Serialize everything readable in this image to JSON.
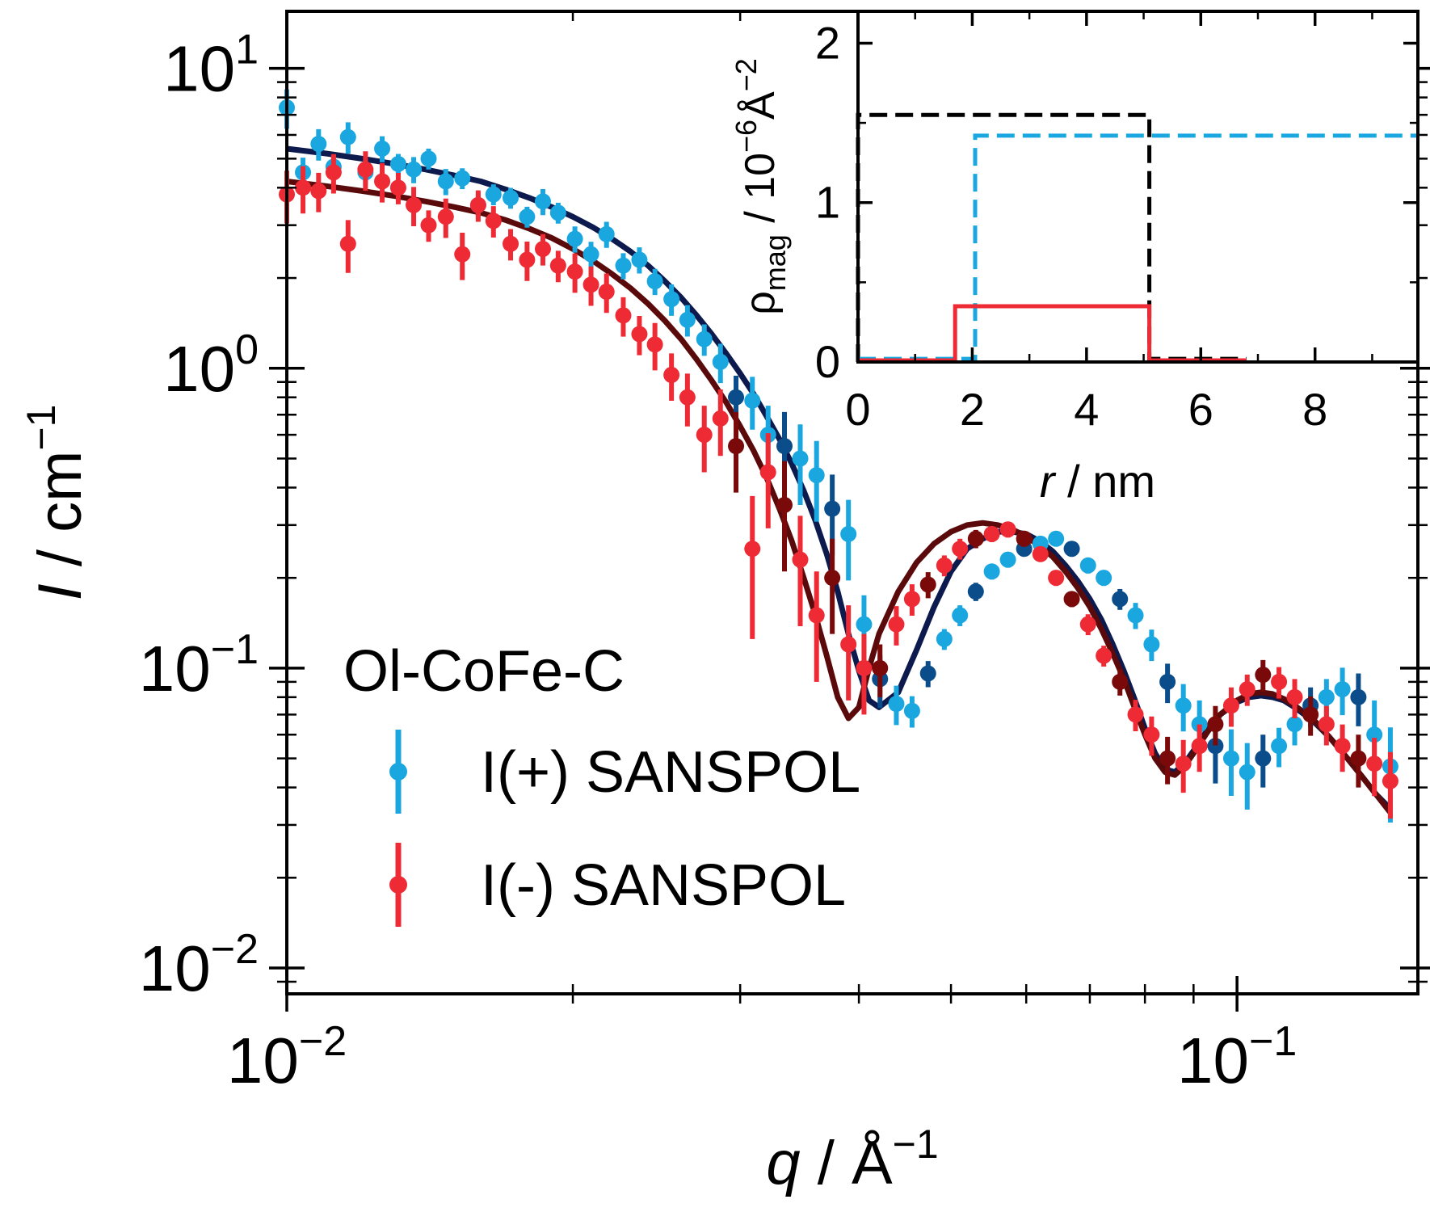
{
  "chart_data": [
    {
      "type": "scatter",
      "title": "",
      "xlabel": {
        "var": "q",
        "sep": " / ",
        "unit": "Å",
        "exp": "−1"
      },
      "ylabel": {
        "var": "I",
        "sep": " / ",
        "unit": "cm",
        "exp": "−1"
      },
      "xscale": "log",
      "yscale": "log",
      "xlim": [
        0.01,
        0.155
      ],
      "ylim": [
        0.0082,
        15.5
      ],
      "xticks": [
        {
          "value": 0.01,
          "base": "10",
          "exp": "−2"
        },
        {
          "value": 0.1,
          "base": "10",
          "exp": "−1"
        }
      ],
      "yticks": [
        {
          "value": 0.01,
          "base": "10",
          "exp": "−2"
        },
        {
          "value": 0.1,
          "base": "10",
          "exp": "−1"
        },
        {
          "value": 1,
          "base": "10",
          "exp": "0"
        },
        {
          "value": 10,
          "base": "10",
          "exp": "1"
        }
      ],
      "grid": false,
      "legend": {
        "placement": "lower-left",
        "title": "Ol-CoFe-C",
        "entries": [
          "I(+) SANSPOL",
          "I(-) SANSPOL"
        ]
      },
      "colors": {
        "plus_data": "#1aa7e0",
        "plus_data_dark": "#0b4d8a",
        "minus_data": "#ee2a35",
        "minus_data_dark": "#7a0a0a",
        "plus_fit": "#0c1a4e",
        "minus_fit": "#5a0a0a"
      },
      "series": [
        {
          "name": "I(+) SANSPOL",
          "x": [
            0.01,
            0.0104,
            0.0108,
            0.0112,
            0.0116,
            0.0121,
            0.0126,
            0.0131,
            0.0136,
            0.0141,
            0.0147,
            0.0153,
            0.0159,
            0.0165,
            0.0172,
            0.0179,
            0.0186,
            0.0193,
            0.0201,
            0.0209,
            0.0217,
            0.0226,
            0.0235,
            0.0244,
            0.0254,
            0.0264,
            0.0275,
            0.0286,
            0.0297,
            0.0309,
            0.0321,
            0.0334,
            0.0347,
            0.0361,
            0.0375,
            0.039,
            0.0405,
            0.0421,
            0.0438,
            0.0455,
            0.0473,
            0.0492,
            0.0511,
            0.0531,
            0.0552,
            0.0574,
            0.0597,
            0.0621,
            0.0645,
            0.067,
            0.0697,
            0.0724,
            0.0753,
            0.0782,
            0.0813,
            0.0845,
            0.0878,
            0.0913,
            0.0949,
            0.0986,
            0.1025,
            0.1065,
            0.1107,
            0.115,
            0.1195,
            0.1242,
            0.1291,
            0.1342,
            0.1395,
            0.145
          ],
          "y": [
            7.4,
            4.5,
            5.6,
            4.7,
            5.9,
            4.5,
            5.4,
            4.8,
            4.6,
            5.0,
            4.2,
            4.3,
            3.5,
            3.8,
            3.7,
            3.2,
            3.6,
            3.3,
            2.7,
            2.4,
            2.8,
            2.2,
            2.3,
            1.95,
            1.7,
            1.45,
            1.25,
            1.05,
            0.8,
            0.78,
            0.6,
            0.55,
            0.5,
            0.44,
            0.34,
            0.28,
            0.14,
            0.092,
            0.076,
            0.072,
            0.096,
            0.125,
            0.15,
            0.18,
            0.21,
            0.23,
            0.25,
            0.26,
            0.27,
            0.25,
            0.22,
            0.2,
            0.17,
            0.15,
            0.12,
            0.09,
            0.075,
            0.065,
            0.055,
            0.05,
            0.045,
            0.05,
            0.055,
            0.065,
            0.075,
            0.08,
            0.085,
            0.08,
            0.06,
            0.047
          ],
          "yerr_rel": [
            0.15,
            0.12,
            0.12,
            0.1,
            0.12,
            0.1,
            0.1,
            0.08,
            0.1,
            0.08,
            0.1,
            0.08,
            0.1,
            0.08,
            0.08,
            0.08,
            0.1,
            0.08,
            0.1,
            0.1,
            0.1,
            0.1,
            0.1,
            0.1,
            0.12,
            0.12,
            0.12,
            0.15,
            0.18,
            0.2,
            0.25,
            0.3,
            0.3,
            0.3,
            0.3,
            0.3,
            0.25,
            0.2,
            0.15,
            0.12,
            0.1,
            0.08,
            0.08,
            0.07,
            0.06,
            0.06,
            0.05,
            0.05,
            0.05,
            0.05,
            0.06,
            0.06,
            0.08,
            0.1,
            0.12,
            0.15,
            0.18,
            0.2,
            0.25,
            0.25,
            0.25,
            0.2,
            0.15,
            0.15,
            0.15,
            0.15,
            0.18,
            0.2,
            0.3,
            0.35
          ]
        },
        {
          "name": "I(-) SANSPOL",
          "x": [
            0.01,
            0.0104,
            0.0108,
            0.0112,
            0.0116,
            0.0121,
            0.0126,
            0.0131,
            0.0136,
            0.0141,
            0.0147,
            0.0153,
            0.0159,
            0.0165,
            0.0172,
            0.0179,
            0.0186,
            0.0193,
            0.0201,
            0.0209,
            0.0217,
            0.0226,
            0.0235,
            0.0244,
            0.0254,
            0.0264,
            0.0275,
            0.0286,
            0.0297,
            0.0309,
            0.0321,
            0.0334,
            0.0347,
            0.0361,
            0.0375,
            0.039,
            0.0405,
            0.0421,
            0.0438,
            0.0455,
            0.0473,
            0.0492,
            0.0511,
            0.0531,
            0.0552,
            0.0574,
            0.0597,
            0.0621,
            0.0645,
            0.067,
            0.0697,
            0.0724,
            0.0753,
            0.0782,
            0.0813,
            0.0845,
            0.0878,
            0.0913,
            0.0949,
            0.0986,
            0.1025,
            0.1065,
            0.1107,
            0.115,
            0.1195,
            0.1242,
            0.1291,
            0.1342,
            0.1395,
            0.145
          ],
          "y": [
            3.8,
            4.0,
            3.9,
            4.5,
            2.6,
            4.6,
            4.2,
            4.0,
            3.5,
            3.0,
            3.2,
            2.4,
            3.5,
            3.1,
            2.6,
            2.3,
            2.5,
            2.2,
            2.1,
            1.9,
            1.8,
            1.5,
            1.3,
            1.2,
            0.95,
            0.8,
            0.6,
            0.68,
            0.55,
            0.25,
            0.45,
            0.35,
            0.23,
            0.15,
            0.2,
            0.12,
            0.1,
            0.1,
            0.14,
            0.17,
            0.19,
            0.22,
            0.25,
            0.27,
            0.28,
            0.29,
            0.27,
            0.24,
            0.2,
            0.17,
            0.14,
            0.11,
            0.09,
            0.07,
            0.06,
            0.05,
            0.048,
            0.055,
            0.065,
            0.075,
            0.085,
            0.095,
            0.09,
            0.08,
            0.07,
            0.065,
            0.055,
            0.05,
            0.048,
            0.042
          ],
          "yerr_rel": [
            0.2,
            0.18,
            0.15,
            0.15,
            0.2,
            0.15,
            0.15,
            0.12,
            0.15,
            0.12,
            0.15,
            0.18,
            0.12,
            0.12,
            0.12,
            0.15,
            0.12,
            0.12,
            0.15,
            0.15,
            0.15,
            0.15,
            0.15,
            0.18,
            0.18,
            0.2,
            0.25,
            0.25,
            0.3,
            0.5,
            0.35,
            0.4,
            0.4,
            0.4,
            0.35,
            0.35,
            0.3,
            0.2,
            0.15,
            0.12,
            0.1,
            0.08,
            0.08,
            0.07,
            0.06,
            0.06,
            0.06,
            0.05,
            0.06,
            0.06,
            0.08,
            0.08,
            0.1,
            0.12,
            0.15,
            0.18,
            0.2,
            0.18,
            0.15,
            0.15,
            0.12,
            0.12,
            0.12,
            0.15,
            0.15,
            0.15,
            0.18,
            0.2,
            0.22,
            0.25
          ]
        },
        {
          "name": "",
          "kind": "fit",
          "x": [
            0.01,
            0.011,
            0.012,
            0.013,
            0.014,
            0.015,
            0.016,
            0.017,
            0.018,
            0.019,
            0.02,
            0.021,
            0.022,
            0.023,
            0.024,
            0.025,
            0.026,
            0.027,
            0.028,
            0.029,
            0.03,
            0.031,
            0.032,
            0.033,
            0.034,
            0.035,
            0.036,
            0.037,
            0.038,
            0.039,
            0.04,
            0.041,
            0.042,
            0.044,
            0.046,
            0.048,
            0.05,
            0.052,
            0.054,
            0.056,
            0.058,
            0.06,
            0.062,
            0.064,
            0.066,
            0.068,
            0.07,
            0.072,
            0.074,
            0.076,
            0.078,
            0.08,
            0.082,
            0.084,
            0.086,
            0.088,
            0.09,
            0.093,
            0.096,
            0.1,
            0.103,
            0.106,
            0.109,
            0.112,
            0.115,
            0.12,
            0.125,
            0.13,
            0.135,
            0.14,
            0.145
          ],
          "y": [
            5.4,
            5.2,
            5.0,
            4.8,
            4.6,
            4.4,
            4.2,
            3.95,
            3.7,
            3.45,
            3.2,
            2.95,
            2.7,
            2.45,
            2.2,
            1.95,
            1.72,
            1.5,
            1.3,
            1.12,
            0.96,
            0.82,
            0.69,
            0.58,
            0.48,
            0.39,
            0.31,
            0.24,
            0.18,
            0.13,
            0.098,
            0.078,
            0.074,
            0.083,
            0.115,
            0.16,
            0.21,
            0.25,
            0.27,
            0.285,
            0.285,
            0.28,
            0.265,
            0.245,
            0.22,
            0.195,
            0.17,
            0.145,
            0.12,
            0.098,
            0.079,
            0.063,
            0.052,
            0.046,
            0.045,
            0.048,
            0.053,
            0.062,
            0.07,
            0.077,
            0.08,
            0.081,
            0.08,
            0.078,
            0.074,
            0.067,
            0.059,
            0.051,
            0.044,
            0.038,
            0.034
          ]
        },
        {
          "name": "",
          "kind": "fit",
          "x": [
            0.01,
            0.011,
            0.012,
            0.013,
            0.014,
            0.015,
            0.016,
            0.017,
            0.018,
            0.019,
            0.02,
            0.021,
            0.022,
            0.023,
            0.024,
            0.025,
            0.026,
            0.027,
            0.028,
            0.029,
            0.03,
            0.031,
            0.032,
            0.033,
            0.034,
            0.035,
            0.036,
            0.037,
            0.038,
            0.039,
            0.04,
            0.041,
            0.042,
            0.044,
            0.046,
            0.048,
            0.05,
            0.052,
            0.054,
            0.056,
            0.058,
            0.06,
            0.062,
            0.064,
            0.066,
            0.068,
            0.07,
            0.072,
            0.074,
            0.076,
            0.078,
            0.08,
            0.082,
            0.084,
            0.086,
            0.088,
            0.09,
            0.093,
            0.096,
            0.1,
            0.103,
            0.106,
            0.109,
            0.112,
            0.115,
            0.12,
            0.125,
            0.13,
            0.135,
            0.14,
            0.145
          ],
          "y": [
            4.2,
            4.05,
            3.9,
            3.75,
            3.6,
            3.45,
            3.3,
            3.12,
            2.92,
            2.72,
            2.5,
            2.28,
            2.06,
            1.85,
            1.64,
            1.44,
            1.25,
            1.07,
            0.91,
            0.77,
            0.64,
            0.53,
            0.43,
            0.34,
            0.265,
            0.2,
            0.15,
            0.11,
            0.08,
            0.068,
            0.074,
            0.1,
            0.13,
            0.18,
            0.225,
            0.26,
            0.285,
            0.3,
            0.305,
            0.3,
            0.29,
            0.275,
            0.255,
            0.235,
            0.21,
            0.185,
            0.16,
            0.135,
            0.112,
            0.092,
            0.074,
            0.06,
            0.05,
            0.045,
            0.044,
            0.047,
            0.052,
            0.061,
            0.07,
            0.078,
            0.082,
            0.083,
            0.082,
            0.079,
            0.075,
            0.068,
            0.059,
            0.051,
            0.044,
            0.038,
            0.033
          ]
        }
      ]
    },
    {
      "type": "line",
      "title": "",
      "xlabel": {
        "var": "r",
        "sep": " / ",
        "unit": "nm"
      },
      "ylabel": {
        "var": "ρ",
        "sub": "mag",
        "sep": " / ",
        "unit": "10",
        "exp": "−6",
        "unit2": "Å",
        "exp2": "−2"
      },
      "xlim": [
        0,
        9.8
      ],
      "ylim": [
        0,
        2.2
      ],
      "xticks": [
        0,
        2,
        4,
        6,
        8
      ],
      "yticks": [
        0,
        1,
        2
      ],
      "grid": false,
      "series": [
        {
          "name": "",
          "style": "dashed",
          "color": "#000000",
          "x": [
            0,
            0,
            5.1,
            5.1,
            6.8
          ],
          "y": [
            0,
            1.55,
            1.55,
            0.02,
            0.02
          ]
        },
        {
          "name": "",
          "style": "dashed",
          "color": "#1aa7e0",
          "x": [
            0,
            2.05,
            2.05,
            9.8
          ],
          "y": [
            0.02,
            0.02,
            1.42,
            1.42
          ]
        },
        {
          "name": "",
          "style": "solid",
          "color": "#ee2a35",
          "x": [
            0,
            1.7,
            1.7,
            5.1,
            5.1,
            6.8
          ],
          "y": [
            0.01,
            0.01,
            0.35,
            0.35,
            0.01,
            0.01
          ]
        }
      ]
    }
  ]
}
